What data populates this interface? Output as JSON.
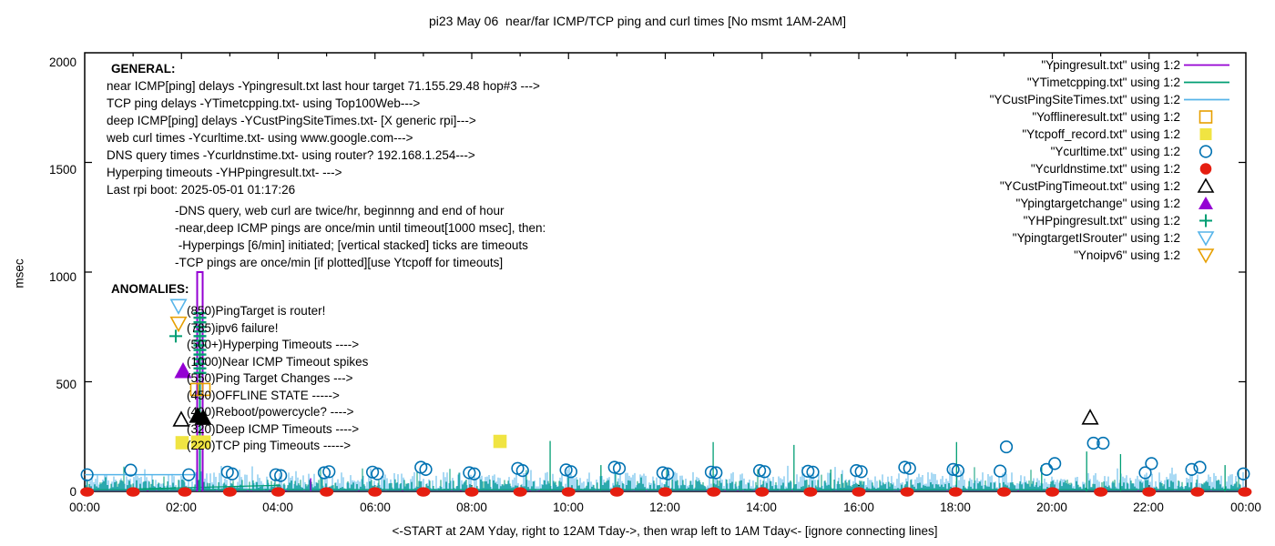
{
  "title": "pi23 May 06  near/far ICMP/TCP ping and curl times [No msmt 1AM-2AM]",
  "axes": {
    "ylabel": "msec",
    "y_ticks": [
      "0",
      "500",
      "1000",
      "1500",
      "2000"
    ],
    "x_ticks": [
      "00:00",
      "02:00",
      "04:00",
      "06:00",
      "08:00",
      "10:00",
      "12:00",
      "14:00",
      "16:00",
      "18:00",
      "20:00",
      "22:00",
      "00:00"
    ],
    "x_note": "<-START at 2AM Yday, right to 12AM Tday->, then wrap left to 1AM Tday<- [ignore connecting lines]"
  },
  "general": {
    "heading": "GENERAL:",
    "lines": [
      "near ICMP[ping] delays -Ypingresult.txt last hour target 71.155.29.48 hop#3 --->",
      "TCP ping delays -YTimetcpping.txt- using Top100Web--->",
      "deep ICMP[ping] delays -YCustPingSiteTimes.txt- [X generic rpi]--->",
      "web curl times -Ycurltime.txt- using www.google.com--->",
      "DNS query times -Ycurldnstime.txt- using router? 192.168.1.254--->",
      "Hyperping timeouts -YHPpingresult.txt- --->",
      "Last rpi boot: 2025-05-01 01:17:26"
    ],
    "notes": [
      "-DNS query, web curl are twice/hr, beginnng and end of hour",
      "-near,deep ICMP pings are once/min until timeout[1000 msec], then:",
      " -Hyperpings [6/min] initiated; [vertical stacked] ticks are timeouts",
      "-TCP pings are once/min [if plotted][use Ytcpoff for timeouts]"
    ]
  },
  "anomalies": {
    "heading": "ANOMALIES:",
    "items": [
      "(850)PingTarget is router!",
      "(785)ipv6 failure!",
      "(500+)Hyperping Timeouts ---->",
      "(1000)Near ICMP Timeout spikes",
      "(550)Ping Target Changes --->",
      "(450)OFFLINE STATE ----->",
      "(400)Reboot/powercycle? ---->",
      "(320)Deep ICMP Timeouts ---->",
      "(220)TCP ping Timeouts ----->"
    ]
  },
  "legend": {
    "entries": [
      {
        "label": "\"Ypingresult.txt\" using 1:2",
        "sample": "line",
        "color": "#9400D3"
      },
      {
        "label": "\"YTimetcpping.txt\" using 1:2",
        "sample": "line",
        "color": "#009E73"
      },
      {
        "label": "\"YCustPingSiteTimes.txt\" using 1:2",
        "sample": "line",
        "color": "#56B4E9"
      },
      {
        "label": "\"Yofflineresult.txt\" using 1:2",
        "sample": "open-square",
        "color": "#E69F00"
      },
      {
        "label": "\"Ytcpoff_record.txt\" using 1:2",
        "sample": "filled-square",
        "color": "#F0E442"
      },
      {
        "label": "\"Ycurltime.txt\" using 1:2",
        "sample": "open-circle",
        "color": "#0072B2"
      },
      {
        "label": "\"Ycurldnstime.txt\" using 1:2",
        "sample": "filled-circle",
        "color": "#E51E10"
      },
      {
        "label": "\"YCustPingTimeout.txt\" using 1:2",
        "sample": "open-triangle",
        "color": "#000000"
      },
      {
        "label": "\"Ypingtargetchange\" using 1:2",
        "sample": "filled-triangle",
        "color": "#9400D3"
      },
      {
        "label": "\"YHPpingresult.txt\" using 1:2",
        "sample": "plus",
        "color": "#009E73"
      },
      {
        "label": "\"YpingtargetISrouter\" using 1:2",
        "sample": "open-down-triangle",
        "color": "#56B4E9"
      },
      {
        "label": "\"Ynoipv6\" using 1:2",
        "sample": "open-down-triangle",
        "color": "#E69F00"
      }
    ]
  },
  "chart_data": {
    "type": "line",
    "title": "pi23 May 06  near/far ICMP/TCP ping and curl times [No msmt 1AM-2AM]",
    "ylabel": "msec",
    "ylim": [
      0,
      2000
    ],
    "xlim_hours": [
      0,
      24
    ],
    "x_tick_hours": [
      0,
      2,
      4,
      6,
      8,
      10,
      12,
      14,
      16,
      18,
      20,
      22,
      24
    ],
    "y_tick_values": [
      0,
      500,
      1000,
      1500,
      2000
    ],
    "legend_position": "top-right",
    "grid": false,
    "noise_seed": 11,
    "series": [
      {
        "name": "Ypingresult.txt",
        "style": "line",
        "color": "#9400D3",
        "baseline_msec": 3,
        "timeout_spike": {
          "start_h": 2.325,
          "end_h": 2.438,
          "msec": 1000
        },
        "small_spikes": [
          [
            4.67,
            60
          ]
        ]
      },
      {
        "name": "YTimetcpping.txt",
        "style": "line",
        "color": "#009E73",
        "noise": {
          "min": 0,
          "max": 55
        },
        "spikes": [
          [
            9.62,
            230
          ],
          [
            10.67,
            120
          ],
          [
            12.99,
            225
          ],
          [
            14.66,
            212
          ],
          [
            15.42,
            100
          ],
          [
            18.02,
            225
          ],
          [
            19.78,
            120
          ],
          [
            20.71,
            182
          ],
          [
            21.41,
            170
          ],
          [
            23.57,
            120
          ]
        ],
        "gap_connector": {
          "from_h": 1.04,
          "from_msec": 11,
          "to_h": 4.05,
          "to_msec": 28
        }
      },
      {
        "name": "YCustPingSiteTimes.txt",
        "style": "line",
        "color": "#56B4E9",
        "noise": {
          "min": 12,
          "max": 88
        },
        "flat_connector": {
          "from_h": 0.0,
          "to_h": 2.33,
          "msec": 76
        }
      },
      {
        "name": "Yofflineresult.txt",
        "style": "open-square",
        "color": "#E69F00",
        "points": [
          [
            2.315,
            465
          ],
          [
            2.466,
            465
          ]
        ]
      },
      {
        "name": "Ytcpoff_record.txt",
        "style": "filled-square",
        "color": "#F0E442",
        "points": [
          [
            2.014,
            222
          ],
          [
            2.334,
            225
          ],
          [
            2.466,
            225
          ],
          [
            8.584,
            228
          ]
        ]
      },
      {
        "name": "Ycurltime.txt",
        "style": "open-circle",
        "color": "#0072B2",
        "points": [
          [
            0.05,
            76
          ],
          [
            0.95,
            97
          ],
          [
            2.15,
            76
          ],
          [
            2.95,
            88
          ],
          [
            3.05,
            80
          ],
          [
            3.95,
            76
          ],
          [
            4.05,
            72
          ],
          [
            4.95,
            85
          ],
          [
            5.05,
            90
          ],
          [
            5.95,
            88
          ],
          [
            6.05,
            80
          ],
          [
            6.95,
            110
          ],
          [
            7.05,
            100
          ],
          [
            7.95,
            85
          ],
          [
            8.05,
            80
          ],
          [
            8.95,
            105
          ],
          [
            9.05,
            95
          ],
          [
            9.95,
            98
          ],
          [
            10.05,
            90
          ],
          [
            10.95,
            110
          ],
          [
            11.05,
            105
          ],
          [
            11.95,
            85
          ],
          [
            12.05,
            80
          ],
          [
            12.95,
            88
          ],
          [
            13.05,
            85
          ],
          [
            13.95,
            95
          ],
          [
            14.05,
            90
          ],
          [
            14.95,
            92
          ],
          [
            15.05,
            88
          ],
          [
            15.95,
            95
          ],
          [
            16.05,
            90
          ],
          [
            16.95,
            110
          ],
          [
            17.05,
            105
          ],
          [
            17.95,
            100
          ],
          [
            18.05,
            95
          ],
          [
            18.92,
            93
          ],
          [
            19.05,
            203
          ],
          [
            19.88,
            100
          ],
          [
            20.05,
            127
          ],
          [
            20.85,
            220
          ],
          [
            21.05,
            220
          ],
          [
            21.92,
            85
          ],
          [
            22.05,
            127
          ],
          [
            22.88,
            100
          ],
          [
            23.05,
            110
          ],
          [
            23.95,
            80
          ]
        ]
      },
      {
        "name": "Ycurldnstime.txt",
        "style": "filled-circle",
        "color": "#E51E10",
        "points_msec": 2,
        "hours": [
          0.05,
          1.0,
          2.07,
          3,
          4,
          5,
          6,
          7,
          8,
          9,
          10,
          11,
          12,
          13,
          14,
          15,
          16,
          17,
          18,
          19,
          20,
          21,
          22,
          23,
          23.98
        ]
      },
      {
        "name": "YCustPingTimeout.txt",
        "style": "open-triangle",
        "color": "#000000",
        "points": [
          [
            1.995,
            330
          ],
          [
            20.782,
            339
          ]
        ],
        "filled_points": [
          [
            2.334,
            347
          ],
          [
            2.447,
            338
          ]
        ]
      },
      {
        "name": "Ypingtargetchange",
        "style": "filled-triangle",
        "color": "#9400D3",
        "points": [
          [
            2.033,
            551
          ]
        ]
      },
      {
        "name": "YHPpingresult.txt",
        "style": "plus",
        "color": "#009E73",
        "points": [
          [
            1.882,
            708
          ]
        ],
        "stack": {
          "h": 2.381,
          "from_msec": 540,
          "to_msec": 818,
          "step_msec": 21
        },
        "vline": {
          "h": 2.381,
          "to_msec": 818
        }
      },
      {
        "name": "YpingtargetISrouter",
        "style": "open-down-triangle",
        "color": "#56B4E9",
        "points": [
          [
            1.939,
            843
          ]
        ]
      },
      {
        "name": "Ynoipv6",
        "style": "open-down-triangle",
        "color": "#E69F00",
        "points": [
          [
            1.939,
            763
          ]
        ]
      }
    ]
  }
}
